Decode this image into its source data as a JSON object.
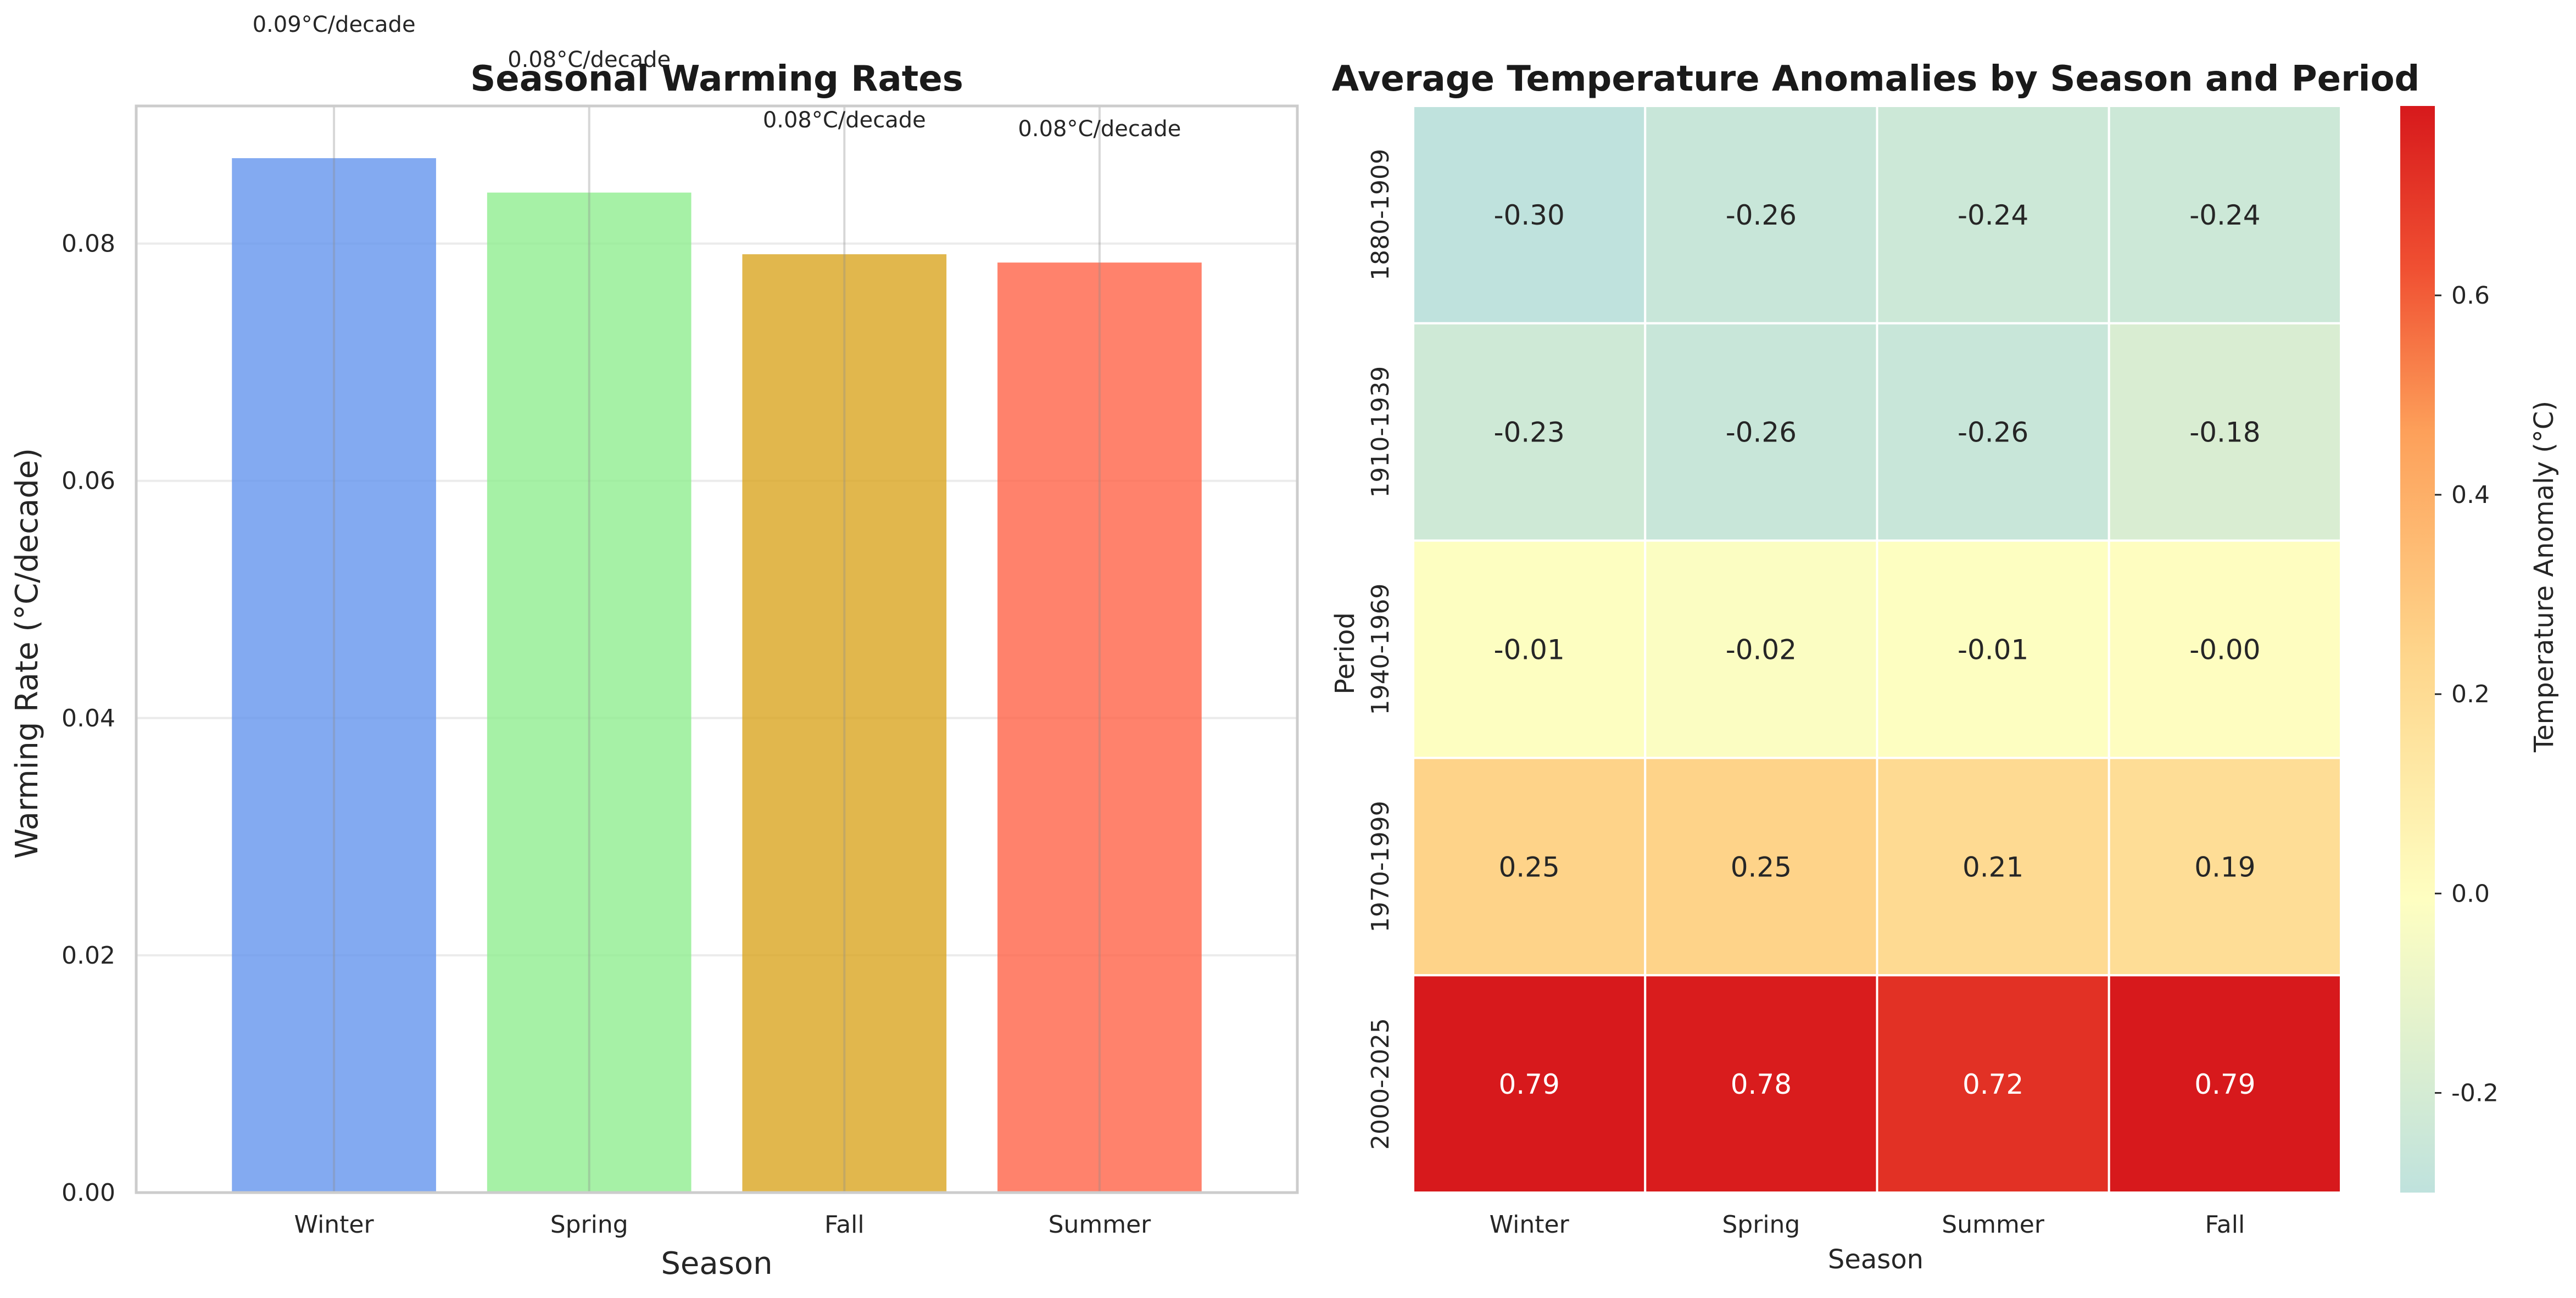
{
  "chart_data": [
    {
      "type": "bar",
      "title": "Seasonal Warming Rates",
      "xlabel": "Season",
      "ylabel": "Warming Rate (°C/decade)",
      "categories": [
        "Winter",
        "Spring",
        "Fall",
        "Summer"
      ],
      "values": [
        0.0872,
        0.0843,
        0.0791,
        0.0784
      ],
      "value_labels": [
        "0.09°C/decade",
        "0.08°C/decade",
        "0.08°C/decade",
        "0.08°C/decade"
      ],
      "colors": [
        "#6495ED",
        "#90EE90",
        "#DAA520",
        "#FF6347"
      ],
      "ylim": [
        0,
        0.0916
      ],
      "yticks": [
        0.0,
        0.02,
        0.04,
        0.06,
        0.08
      ],
      "ytick_labels": [
        "0.00",
        "0.02",
        "0.04",
        "0.06",
        "0.08"
      ],
      "grid": true
    },
    {
      "type": "heatmap",
      "title": "Average Temperature Anomalies by Season and Period",
      "xlabel": "Season",
      "ylabel": "Period",
      "x_categories": [
        "Winter",
        "Spring",
        "Summer",
        "Fall"
      ],
      "y_categories": [
        "1880-1909",
        "1910-1939",
        "1940-1969",
        "1970-1999",
        "2000-2025"
      ],
      "values": [
        [
          -0.3,
          -0.26,
          -0.24,
          -0.24
        ],
        [
          -0.23,
          -0.26,
          -0.26,
          -0.18
        ],
        [
          -0.01,
          -0.02,
          -0.01,
          -0.0
        ],
        [
          0.25,
          0.25,
          0.21,
          0.19
        ],
        [
          0.79,
          0.78,
          0.72,
          0.79
        ]
      ],
      "cell_labels": [
        [
          "-0.30",
          "-0.26",
          "-0.24",
          "-0.24"
        ],
        [
          "-0.23",
          "-0.26",
          "-0.26",
          "-0.18"
        ],
        [
          "-0.01",
          "-0.02",
          "-0.01",
          "-0.00"
        ],
        [
          "0.25",
          "0.25",
          "0.21",
          "0.19"
        ],
        [
          "0.79",
          "0.78",
          "0.72",
          "0.79"
        ]
      ],
      "colormap": "RdYlBu_r-like (teal → pale yellow → red)",
      "vmin": -0.3,
      "vmax": 0.79,
      "colorbar": {
        "label": "Temperature Anomaly (°C)",
        "ticks": [
          -0.2,
          0.0,
          0.2,
          0.4,
          0.6
        ],
        "tick_labels": [
          "-0.2",
          "0.0",
          "0.2",
          "0.4",
          "0.6"
        ]
      }
    }
  ]
}
